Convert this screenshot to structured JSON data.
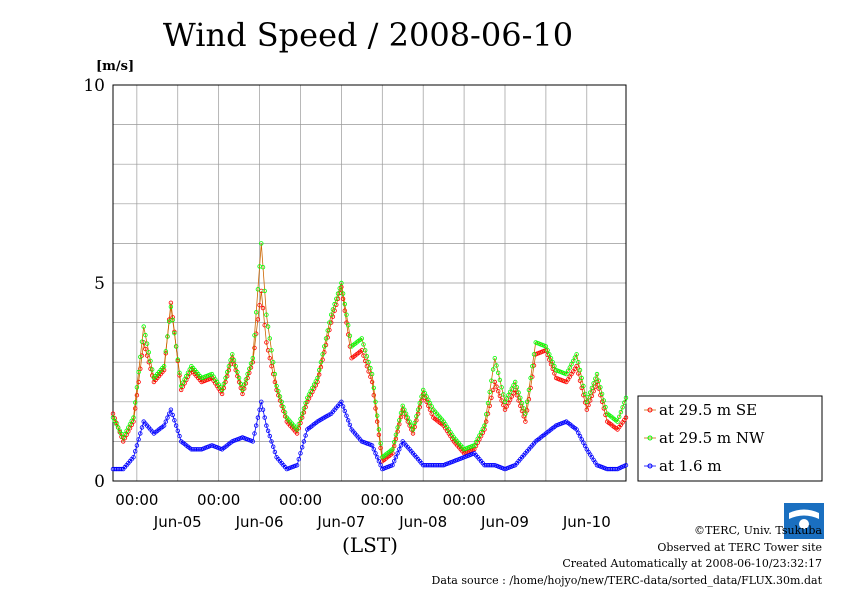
{
  "chart_data": {
    "type": "line",
    "title": "Wind Speed / 2008-06-10",
    "ylabel": "[m/s]",
    "xlabel": "(LST)",
    "ylim": [
      0,
      10
    ],
    "yticks": [
      "0",
      "5",
      "10"
    ],
    "xticks_top": [
      "00:00",
      "00:00",
      "00:00",
      "00:00",
      "00:00"
    ],
    "xticks_bottom": [
      "Jun-05",
      "Jun-06",
      "Jun-07",
      "Jun-08",
      "Jun-09",
      "Jun-10"
    ],
    "grid": true,
    "legend_position": "right",
    "x_start": "2008-06-04 17:00",
    "x_end": "2008-06-10 23:30",
    "x_step_minutes": 30,
    "series": [
      {
        "name": "at 29.5 m SE",
        "color": "#ff0000",
        "line_color": "#cc6600",
        "points": [
          [
            "2008-06-04 17:00",
            1.7
          ],
          [
            "2008-06-04 20:00",
            1.0
          ],
          [
            "2008-06-04 23:00",
            1.5
          ],
          [
            "2008-06-05 02:00",
            3.5
          ],
          [
            "2008-06-05 05:00",
            2.5
          ],
          [
            "2008-06-05 08:00",
            2.8
          ],
          [
            "2008-06-05 10:00",
            4.5
          ],
          [
            "2008-06-05 13:00",
            2.3
          ],
          [
            "2008-06-05 16:00",
            2.8
          ],
          [
            "2008-06-05 19:00",
            2.5
          ],
          [
            "2008-06-05 22:00",
            2.6
          ],
          [
            "2008-06-06 01:00",
            2.2
          ],
          [
            "2008-06-06 04:00",
            3.1
          ],
          [
            "2008-06-06 07:00",
            2.2
          ],
          [
            "2008-06-06 10:00",
            3.0
          ],
          [
            "2008-06-06 12:30",
            4.8
          ],
          [
            "2008-06-06 14:00",
            3.5
          ],
          [
            "2008-06-06 17:00",
            2.3
          ],
          [
            "2008-06-06 20:00",
            1.5
          ],
          [
            "2008-06-06 23:00",
            1.2
          ],
          [
            "2008-06-07 02:00",
            2.0
          ],
          [
            "2008-06-07 05:00",
            2.5
          ],
          [
            "2008-06-07 09:00",
            4.0
          ],
          [
            "2008-06-07 12:00",
            4.9
          ],
          [
            "2008-06-07 15:00",
            3.1
          ],
          [
            "2008-06-07 18:00",
            3.3
          ],
          [
            "2008-06-07 21:00",
            2.5
          ],
          [
            "2008-06-08 00:00",
            0.5
          ],
          [
            "2008-06-08 03:00",
            0.7
          ],
          [
            "2008-06-08 06:00",
            1.8
          ],
          [
            "2008-06-08 09:00",
            1.2
          ],
          [
            "2008-06-08 12:00",
            2.2
          ],
          [
            "2008-06-08 15:00",
            1.6
          ],
          [
            "2008-06-08 18:00",
            1.4
          ],
          [
            "2008-06-08 21:00",
            1.0
          ],
          [
            "2008-06-09 00:00",
            0.7
          ],
          [
            "2008-06-09 03:00",
            0.8
          ],
          [
            "2008-06-09 06:00",
            1.3
          ],
          [
            "2008-06-09 09:00",
            2.5
          ],
          [
            "2008-06-09 12:00",
            1.8
          ],
          [
            "2008-06-09 15:00",
            2.3
          ],
          [
            "2008-06-09 18:00",
            1.5
          ],
          [
            "2008-06-09 21:00",
            3.2
          ],
          [
            "2008-06-10 00:00",
            3.3
          ],
          [
            "2008-06-10 03:00",
            2.6
          ],
          [
            "2008-06-10 06:00",
            2.5
          ],
          [
            "2008-06-10 09:00",
            2.9
          ],
          [
            "2008-06-10 12:00",
            1.8
          ],
          [
            "2008-06-10 15:00",
            2.5
          ],
          [
            "2008-06-10 18:00",
            1.5
          ],
          [
            "2008-06-10 21:00",
            1.3
          ],
          [
            "2008-06-10 23:30",
            1.6
          ]
        ]
      },
      {
        "name": "at 29.5 m NW",
        "color": "#00ff00",
        "line_color": "#cc6600",
        "points": [
          [
            "2008-06-04 17:00",
            1.6
          ],
          [
            "2008-06-04 20:00",
            1.1
          ],
          [
            "2008-06-04 23:00",
            1.6
          ],
          [
            "2008-06-05 02:00",
            3.9
          ],
          [
            "2008-06-05 05:00",
            2.6
          ],
          [
            "2008-06-05 08:00",
            2.9
          ],
          [
            "2008-06-05 10:00",
            4.4
          ],
          [
            "2008-06-05 13:00",
            2.4
          ],
          [
            "2008-06-05 16:00",
            2.9
          ],
          [
            "2008-06-05 19:00",
            2.6
          ],
          [
            "2008-06-05 22:00",
            2.7
          ],
          [
            "2008-06-06 01:00",
            2.3
          ],
          [
            "2008-06-06 04:00",
            3.2
          ],
          [
            "2008-06-06 07:00",
            2.3
          ],
          [
            "2008-06-06 10:00",
            3.1
          ],
          [
            "2008-06-06 12:30",
            6.0
          ],
          [
            "2008-06-06 14:00",
            4.2
          ],
          [
            "2008-06-06 17:00",
            2.4
          ],
          [
            "2008-06-06 20:00",
            1.6
          ],
          [
            "2008-06-06 23:00",
            1.3
          ],
          [
            "2008-06-07 02:00",
            2.1
          ],
          [
            "2008-06-07 05:00",
            2.6
          ],
          [
            "2008-06-07 09:00",
            4.2
          ],
          [
            "2008-06-07 12:00",
            5.0
          ],
          [
            "2008-06-07 15:00",
            3.4
          ],
          [
            "2008-06-07 18:00",
            3.6
          ],
          [
            "2008-06-07 21:00",
            2.7
          ],
          [
            "2008-06-08 00:00",
            0.6
          ],
          [
            "2008-06-08 03:00",
            0.8
          ],
          [
            "2008-06-08 06:00",
            1.9
          ],
          [
            "2008-06-08 09:00",
            1.3
          ],
          [
            "2008-06-08 12:00",
            2.3
          ],
          [
            "2008-06-08 15:00",
            1.8
          ],
          [
            "2008-06-08 18:00",
            1.5
          ],
          [
            "2008-06-08 21:00",
            1.1
          ],
          [
            "2008-06-09 00:00",
            0.8
          ],
          [
            "2008-06-09 03:00",
            0.9
          ],
          [
            "2008-06-09 06:00",
            1.4
          ],
          [
            "2008-06-09 09:00",
            3.1
          ],
          [
            "2008-06-09 12:00",
            2.0
          ],
          [
            "2008-06-09 15:00",
            2.5
          ],
          [
            "2008-06-09 18:00",
            1.7
          ],
          [
            "2008-06-09 21:00",
            3.5
          ],
          [
            "2008-06-10 00:00",
            3.4
          ],
          [
            "2008-06-10 03:00",
            2.8
          ],
          [
            "2008-06-10 06:00",
            2.7
          ],
          [
            "2008-06-10 09:00",
            3.2
          ],
          [
            "2008-06-10 12:00",
            2.0
          ],
          [
            "2008-06-10 15:00",
            2.7
          ],
          [
            "2008-06-10 18:00",
            1.7
          ],
          [
            "2008-06-10 21:00",
            1.5
          ],
          [
            "2008-06-10 23:30",
            2.1
          ]
        ]
      },
      {
        "name": "at 1.6 m",
        "color": "#0000ff",
        "line_color": "#0000ff",
        "points": [
          [
            "2008-06-04 17:00",
            0.3
          ],
          [
            "2008-06-04 20:00",
            0.3
          ],
          [
            "2008-06-04 23:00",
            0.6
          ],
          [
            "2008-06-05 02:00",
            1.5
          ],
          [
            "2008-06-05 05:00",
            1.2
          ],
          [
            "2008-06-05 08:00",
            1.4
          ],
          [
            "2008-06-05 10:00",
            1.8
          ],
          [
            "2008-06-05 13:00",
            1.0
          ],
          [
            "2008-06-05 16:00",
            0.8
          ],
          [
            "2008-06-05 19:00",
            0.8
          ],
          [
            "2008-06-05 22:00",
            0.9
          ],
          [
            "2008-06-06 01:00",
            0.8
          ],
          [
            "2008-06-06 04:00",
            1.0
          ],
          [
            "2008-06-06 07:00",
            1.1
          ],
          [
            "2008-06-06 10:00",
            1.0
          ],
          [
            "2008-06-06 12:30",
            2.0
          ],
          [
            "2008-06-06 14:00",
            1.4
          ],
          [
            "2008-06-06 17:00",
            0.6
          ],
          [
            "2008-06-06 20:00",
            0.3
          ],
          [
            "2008-06-06 23:00",
            0.4
          ],
          [
            "2008-06-07 02:00",
            1.3
          ],
          [
            "2008-06-07 05:00",
            1.5
          ],
          [
            "2008-06-07 09:00",
            1.7
          ],
          [
            "2008-06-07 12:00",
            2.0
          ],
          [
            "2008-06-07 15:00",
            1.3
          ],
          [
            "2008-06-07 18:00",
            1.0
          ],
          [
            "2008-06-07 21:00",
            0.9
          ],
          [
            "2008-06-08 00:00",
            0.3
          ],
          [
            "2008-06-08 03:00",
            0.4
          ],
          [
            "2008-06-08 06:00",
            1.0
          ],
          [
            "2008-06-08 09:00",
            0.7
          ],
          [
            "2008-06-08 12:00",
            0.4
          ],
          [
            "2008-06-08 15:00",
            0.4
          ],
          [
            "2008-06-08 18:00",
            0.4
          ],
          [
            "2008-06-08 21:00",
            0.5
          ],
          [
            "2008-06-09 00:00",
            0.6
          ],
          [
            "2008-06-09 03:00",
            0.7
          ],
          [
            "2008-06-09 06:00",
            0.4
          ],
          [
            "2008-06-09 09:00",
            0.4
          ],
          [
            "2008-06-09 12:00",
            0.3
          ],
          [
            "2008-06-09 15:00",
            0.4
          ],
          [
            "2008-06-09 18:00",
            0.7
          ],
          [
            "2008-06-09 21:00",
            1.0
          ],
          [
            "2008-06-10 00:00",
            1.2
          ],
          [
            "2008-06-10 03:00",
            1.4
          ],
          [
            "2008-06-10 06:00",
            1.5
          ],
          [
            "2008-06-10 09:00",
            1.3
          ],
          [
            "2008-06-10 12:00",
            0.8
          ],
          [
            "2008-06-10 15:00",
            0.4
          ],
          [
            "2008-06-10 18:00",
            0.3
          ],
          [
            "2008-06-10 21:00",
            0.3
          ],
          [
            "2008-06-10 23:30",
            0.4
          ]
        ]
      }
    ]
  },
  "footer": {
    "copyright": "©TERC, Univ. Tsukuba",
    "observed": "Observed at TERC Tower site",
    "created": "Created Automatically at 2008-06-10/23:32:17",
    "source": "Data source : /home/hojyo/new/TERC-data/sorted_data/FLUX.30m.dat"
  },
  "logo": {
    "text": "TERC"
  }
}
